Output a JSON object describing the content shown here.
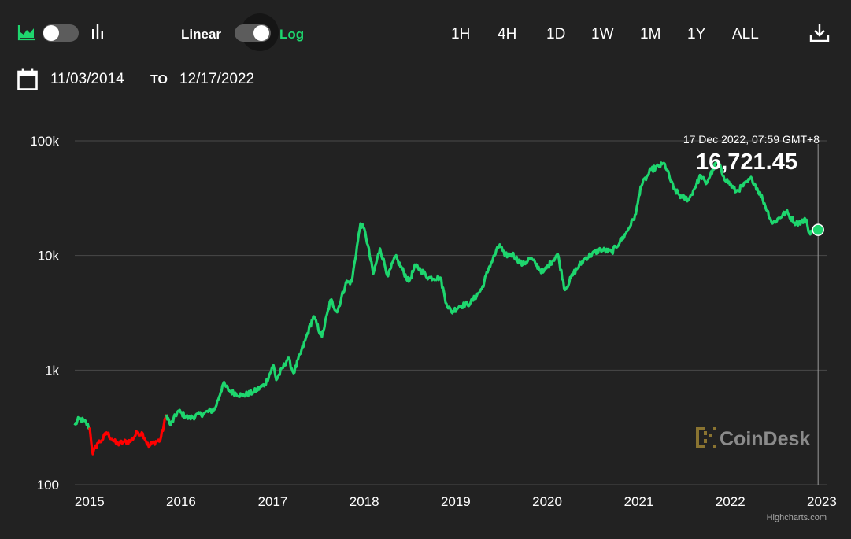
{
  "toolbar": {
    "linear_label": "Linear",
    "log_label": "Log",
    "ranges": [
      "1H",
      "4H",
      "1D",
      "1W",
      "1M",
      "1Y",
      "ALL"
    ],
    "colors": {
      "accent": "#1ed66e",
      "down": "#ff0000",
      "background": "#222222"
    }
  },
  "dates": {
    "from": "11/03/2014",
    "to_label": "TO",
    "to": "12/17/2022"
  },
  "tooltip": {
    "time": "17 Dec 2022, 07:59 GMT+8",
    "value": "16,721.45"
  },
  "watermark": "CoinDesk",
  "credits": "Highcharts.com",
  "chart_data": {
    "type": "line",
    "y_scale": "log",
    "ylim": [
      100,
      100000
    ],
    "xlim": [
      "2014-11-03",
      "2022-12-17"
    ],
    "y_ticks": [
      {
        "value": 100,
        "label": "100"
      },
      {
        "value": 1000,
        "label": "1k"
      },
      {
        "value": 10000,
        "label": "10k"
      },
      {
        "value": 100000,
        "label": "100k"
      }
    ],
    "x_ticks": [
      "2015",
      "2016",
      "2017",
      "2018",
      "2019",
      "2020",
      "2021",
      "2022",
      "2023"
    ],
    "grid": true,
    "series": [
      {
        "color_up": "#1ed66e",
        "color_down": "#ff0000",
        "points": [
          [
            "2014-11-03",
            330
          ],
          [
            "2014-11-20",
            375
          ],
          [
            "2014-12-10",
            360
          ],
          [
            "2015-01-01",
            315
          ],
          [
            "2015-01-14",
            185
          ],
          [
            "2015-02-01",
            230
          ],
          [
            "2015-02-20",
            245
          ],
          [
            "2015-03-10",
            285
          ],
          [
            "2015-04-01",
            250
          ],
          [
            "2015-04-20",
            225
          ],
          [
            "2015-05-15",
            235
          ],
          [
            "2015-06-15",
            240
          ],
          [
            "2015-07-10",
            285
          ],
          [
            "2015-08-01",
            280
          ],
          [
            "2015-08-25",
            215
          ],
          [
            "2015-09-15",
            235
          ],
          [
            "2015-10-10",
            245
          ],
          [
            "2015-11-04",
            410
          ],
          [
            "2015-11-20",
            330
          ],
          [
            "2015-12-20",
            440
          ],
          [
            "2016-02-01",
            380
          ],
          [
            "2016-04-01",
            420
          ],
          [
            "2016-05-15",
            455
          ],
          [
            "2016-06-17",
            760
          ],
          [
            "2016-07-15",
            650
          ],
          [
            "2016-09-01",
            600
          ],
          [
            "2016-10-15",
            640
          ],
          [
            "2016-12-01",
            750
          ],
          [
            "2017-01-04",
            1100
          ],
          [
            "2017-01-15",
            820
          ],
          [
            "2017-03-03",
            1280
          ],
          [
            "2017-03-25",
            940
          ],
          [
            "2017-05-10",
            1800
          ],
          [
            "2017-06-12",
            2950
          ],
          [
            "2017-07-16",
            1950
          ],
          [
            "2017-08-20",
            4100
          ],
          [
            "2017-09-15",
            3200
          ],
          [
            "2017-10-20",
            5800
          ],
          [
            "2017-11-12",
            5900
          ],
          [
            "2017-12-17",
            19000
          ],
          [
            "2018-01-05",
            16000
          ],
          [
            "2018-02-06",
            6900
          ],
          [
            "2018-03-05",
            11500
          ],
          [
            "2018-04-06",
            6600
          ],
          [
            "2018-05-05",
            9800
          ],
          [
            "2018-06-28",
            5900
          ],
          [
            "2018-07-25",
            8200
          ],
          [
            "2018-09-15",
            6400
          ],
          [
            "2018-11-01",
            6400
          ],
          [
            "2018-11-25",
            3800
          ],
          [
            "2018-12-15",
            3200
          ],
          [
            "2019-01-15",
            3600
          ],
          [
            "2019-03-01",
            3850
          ],
          [
            "2019-04-15",
            5100
          ],
          [
            "2019-05-15",
            8000
          ],
          [
            "2019-06-26",
            12500
          ],
          [
            "2019-07-15",
            10000
          ],
          [
            "2019-08-15",
            10300
          ],
          [
            "2019-09-25",
            8300
          ],
          [
            "2019-10-26",
            9500
          ],
          [
            "2019-12-15",
            7100
          ],
          [
            "2020-02-12",
            10300
          ],
          [
            "2020-03-12",
            5000
          ],
          [
            "2020-04-15",
            7000
          ],
          [
            "2020-06-01",
            9500
          ],
          [
            "2020-08-01",
            11300
          ],
          [
            "2020-09-15",
            10700
          ],
          [
            "2020-11-10",
            15500
          ],
          [
            "2020-12-20",
            23000
          ],
          [
            "2021-01-08",
            40000
          ],
          [
            "2021-02-20",
            56000
          ],
          [
            "2021-04-14",
            63000
          ],
          [
            "2021-05-20",
            38000
          ],
          [
            "2021-06-22",
            32000
          ],
          [
            "2021-07-20",
            31000
          ],
          [
            "2021-09-05",
            50000
          ],
          [
            "2021-09-25",
            42000
          ],
          [
            "2021-11-10",
            67000
          ],
          [
            "2021-12-05",
            49000
          ],
          [
            "2022-01-24",
            36000
          ],
          [
            "2022-03-28",
            47000
          ],
          [
            "2022-05-10",
            31000
          ],
          [
            "2022-06-18",
            19000
          ],
          [
            "2022-08-12",
            24000
          ],
          [
            "2022-09-20",
            19000
          ],
          [
            "2022-11-01",
            20500
          ],
          [
            "2022-11-09",
            16000
          ],
          [
            "2022-12-17",
            16721.45
          ]
        ]
      }
    ]
  }
}
